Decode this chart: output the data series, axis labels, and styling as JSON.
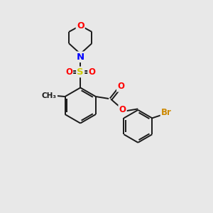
{
  "background_color": "#e8e8e8",
  "bond_color": "#1a1a1a",
  "colors": {
    "O": "#ff0000",
    "N": "#0000ff",
    "S": "#cccc00",
    "Br": "#cc8800",
    "C": "#1a1a1a"
  },
  "lw": 1.4
}
